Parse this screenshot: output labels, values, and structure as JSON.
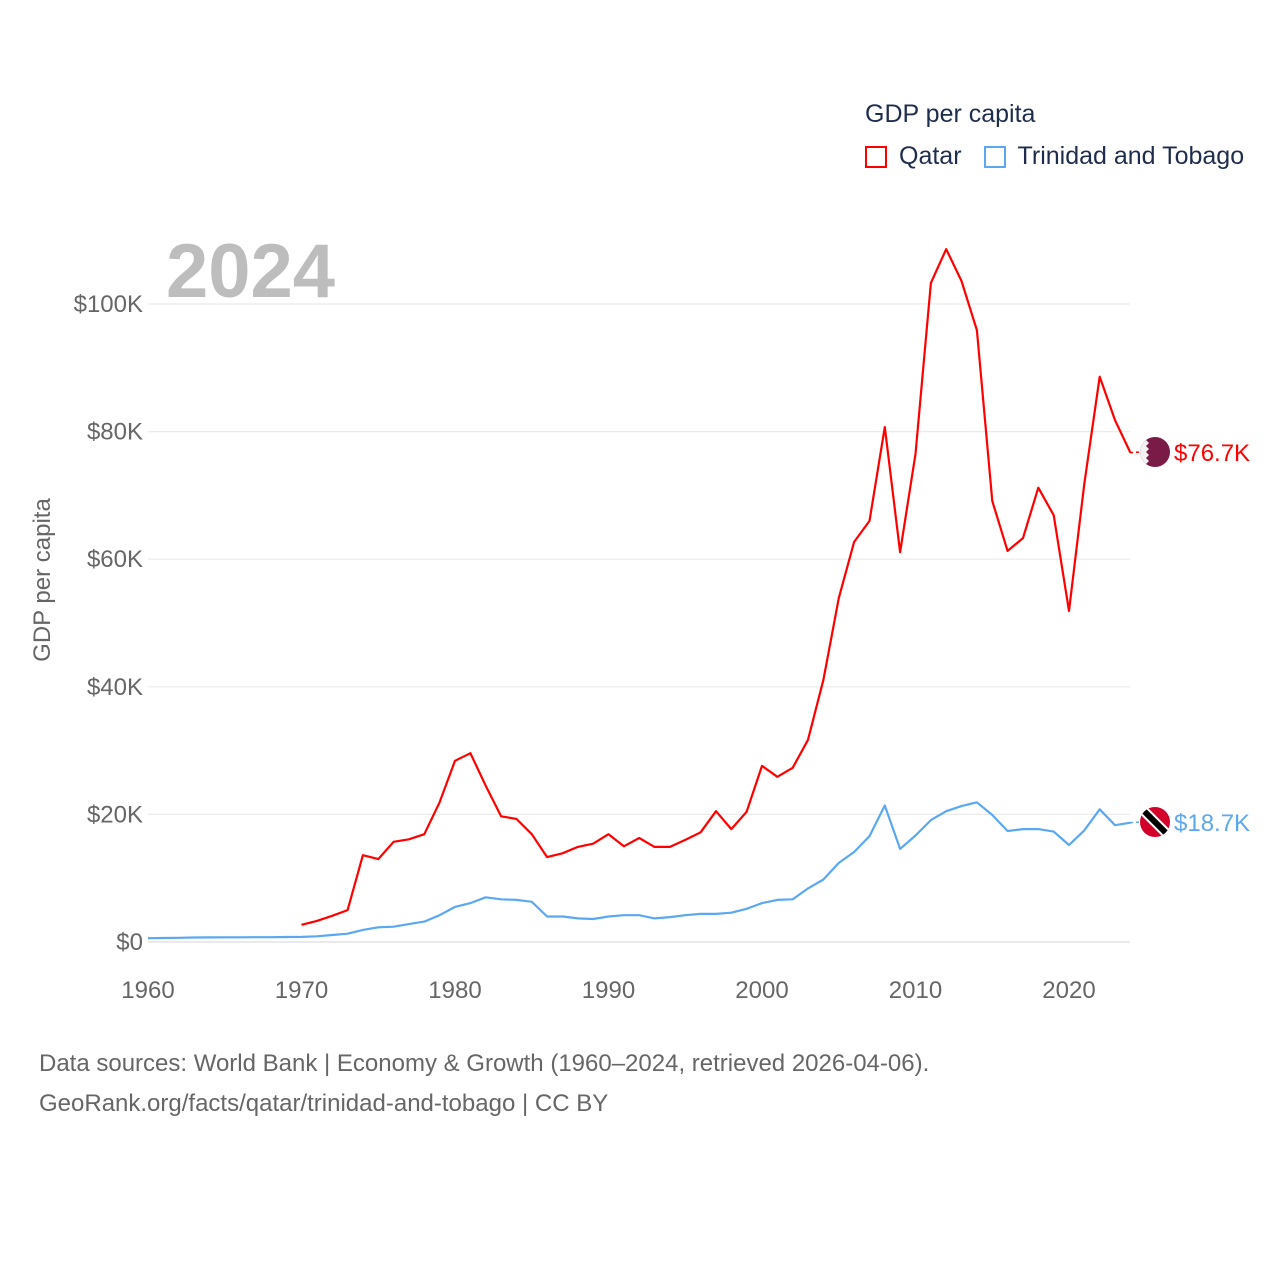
{
  "chart_data": {
    "type": "line",
    "title": "GDP per capita",
    "year_label": "2024",
    "xlabel": "",
    "ylabel": "GDP per capita",
    "xlim": [
      1960,
      2024
    ],
    "ylim": [
      0,
      110
    ],
    "unit": "thousand USD",
    "x_ticks": [
      1960,
      1970,
      1980,
      1990,
      2000,
      2010,
      2020
    ],
    "x_tick_labels": [
      "1960",
      "1970",
      "1980",
      "1990",
      "2000",
      "2010",
      "2020"
    ],
    "y_ticks": [
      0,
      20,
      40,
      60,
      80,
      100
    ],
    "y_tick_labels": [
      "$0",
      "$20K",
      "$40K",
      "$60K",
      "$80K",
      "$100K"
    ],
    "grid": true,
    "legend_position": "top-right",
    "series": [
      {
        "name": "Qatar",
        "color": "#ff0000",
        "end_label": "$76.7K",
        "x": [
          1970,
          1971,
          1972,
          1973,
          1974,
          1975,
          1976,
          1977,
          1978,
          1979,
          1980,
          1981,
          1982,
          1983,
          1984,
          1985,
          1986,
          1987,
          1988,
          1989,
          1990,
          1991,
          1992,
          1993,
          1994,
          1995,
          1996,
          1997,
          1998,
          1999,
          2000,
          2001,
          2002,
          2003,
          2004,
          2005,
          2006,
          2007,
          2008,
          2009,
          2010,
          2011,
          2012,
          2013,
          2014,
          2015,
          2016,
          2017,
          2018,
          2019,
          2020,
          2021,
          2022,
          2023,
          2024
        ],
        "values": [
          2.7,
          3.3,
          4.1,
          5.0,
          13.6,
          13.0,
          15.7,
          16.1,
          16.9,
          21.9,
          28.4,
          29.6,
          24.5,
          19.7,
          19.3,
          16.9,
          13.3,
          13.9,
          14.9,
          15.4,
          16.9,
          15.0,
          16.3,
          14.9,
          14.9,
          16.0,
          17.2,
          20.5,
          17.7,
          20.4,
          27.6,
          25.9,
          27.3,
          31.7,
          41.1,
          53.9,
          62.7,
          66.0,
          80.7,
          61.1,
          76.5,
          103.3,
          108.6,
          103.6,
          95.9,
          69.1,
          61.3,
          63.3,
          71.2,
          66.9,
          51.9,
          71.8,
          88.6,
          81.8,
          76.7
        ]
      },
      {
        "name": "Trinidad and Tobago",
        "color": "#5ba8f0",
        "end_label": "$18.7K",
        "x": [
          1960,
          1961,
          1962,
          1963,
          1964,
          1965,
          1966,
          1967,
          1968,
          1969,
          1970,
          1971,
          1972,
          1973,
          1974,
          1975,
          1976,
          1977,
          1978,
          1979,
          1980,
          1981,
          1982,
          1983,
          1984,
          1985,
          1986,
          1987,
          1988,
          1989,
          1990,
          1991,
          1992,
          1993,
          1994,
          1995,
          1996,
          1997,
          1998,
          1999,
          2000,
          2001,
          2002,
          2003,
          2004,
          2005,
          2006,
          2007,
          2008,
          2009,
          2010,
          2011,
          2012,
          2013,
          2014,
          2015,
          2016,
          2017,
          2018,
          2019,
          2020,
          2021,
          2022,
          2023,
          2024
        ],
        "values": [
          0.6,
          0.63,
          0.66,
          0.7,
          0.72,
          0.74,
          0.74,
          0.76,
          0.76,
          0.78,
          0.8,
          0.9,
          1.1,
          1.3,
          1.9,
          2.3,
          2.4,
          2.8,
          3.2,
          4.2,
          5.5,
          6.1,
          7.0,
          6.7,
          6.6,
          6.3,
          4.0,
          4.0,
          3.7,
          3.6,
          4.0,
          4.2,
          4.2,
          3.7,
          3.9,
          4.2,
          4.4,
          4.4,
          4.6,
          5.2,
          6.1,
          6.6,
          6.7,
          8.4,
          9.8,
          12.4,
          14.1,
          16.6,
          21.4,
          14.6,
          16.7,
          19.1,
          20.5,
          21.3,
          21.9,
          19.9,
          17.4,
          17.7,
          17.7,
          17.3,
          15.2,
          17.5,
          20.8,
          18.3,
          18.7
        ]
      }
    ]
  },
  "source": {
    "line1": "Data sources: World Bank | Economy & Growth (1960–2024, retrieved 2026-04-06).",
    "line2": "GeoRank.org/facts/qatar/trinidad-and-tobago | CC BY"
  }
}
